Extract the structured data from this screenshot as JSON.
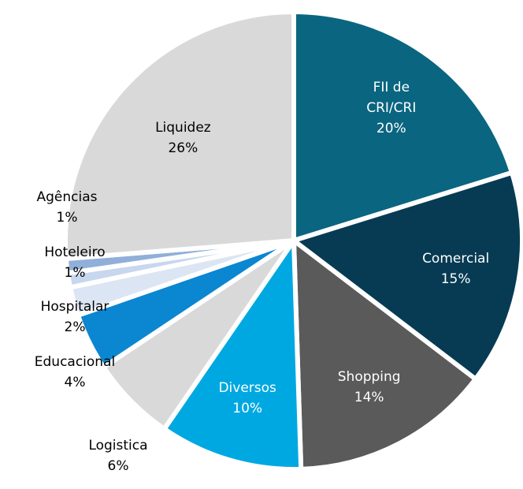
{
  "chart_data": {
    "type": "pie",
    "categories": [
      "FII de CRI/CRI",
      "Comercial",
      "Shopping",
      "Diversos",
      "Logistica",
      "Educacional",
      "Hospitalar",
      "Hoteleiro",
      "Agências",
      "Liquidez"
    ],
    "values": [
      20,
      15,
      14,
      10,
      6,
      4,
      2,
      1,
      1,
      26
    ],
    "value_labels": [
      "20%",
      "15%",
      "14%",
      "10%",
      "6%",
      "4%",
      "2%",
      "1%",
      "1%",
      "26%"
    ],
    "colors": [
      "#0a6580",
      "#073b53",
      "#5a5a5a",
      "#00a8e1",
      "#d9d9d9",
      "#0b86d1",
      "#dce5f3",
      "#c7d7ee",
      "#90afd9",
      "#d9d9d9"
    ]
  }
}
